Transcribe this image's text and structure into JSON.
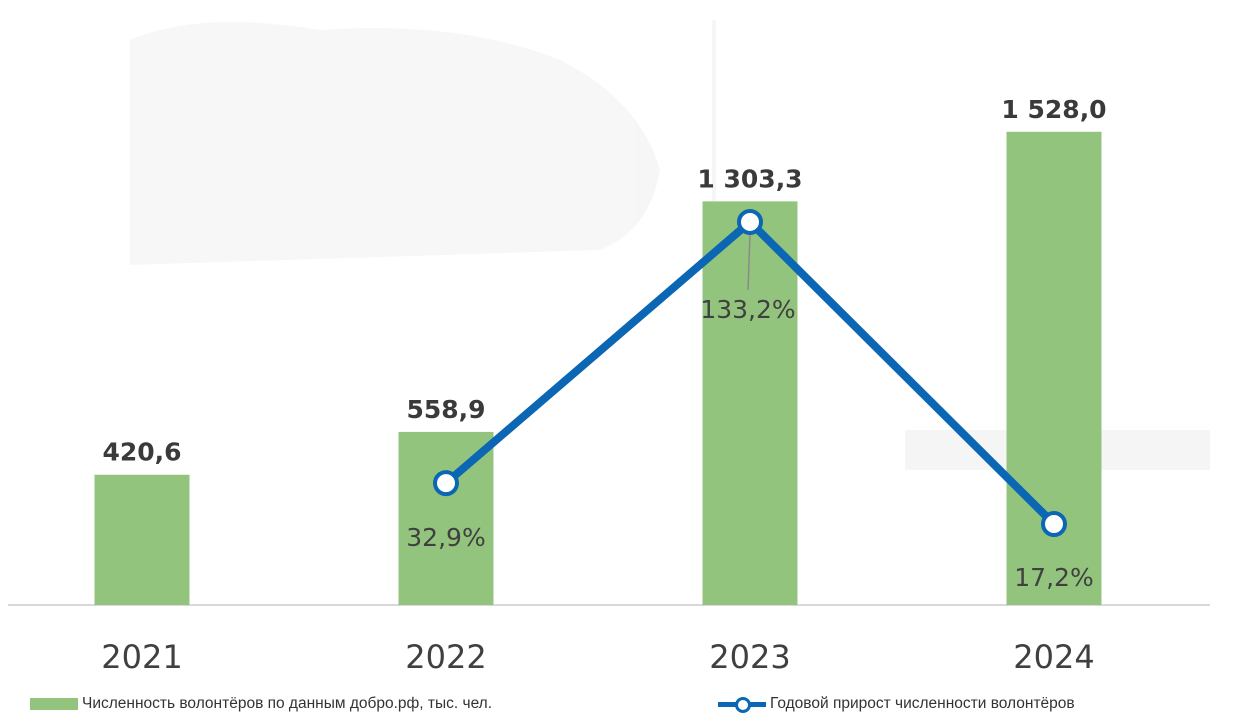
{
  "chart_data": {
    "type": "bar",
    "categories": [
      "2021",
      "2022",
      "2023",
      "2024"
    ],
    "series": [
      {
        "name": "Численность волонтёров по данным добро.рф, тыс. чел.",
        "type": "bar",
        "values": [
          420.6,
          558.9,
          1303.3,
          1528.0
        ],
        "labels": [
          "420,6",
          "558,9",
          "1 303,3",
          "1 528,0"
        ],
        "color": "#93c47d"
      },
      {
        "name": "Годовой прирост численности волонтёров",
        "type": "line",
        "x": [
          "2022",
          "2023",
          "2024"
        ],
        "values": [
          32.9,
          133.2,
          17.2
        ],
        "labels": [
          "32,9%",
          "133,2%",
          "17,2%"
        ],
        "color": "#0b66b4"
      }
    ],
    "grid": false,
    "legend_position": "bottom"
  },
  "legend": {
    "bar_label": "Численность волонтёров по данным добро.рф, тыс. чел.",
    "line_label": "Годовой прирост численности волонтёров"
  }
}
